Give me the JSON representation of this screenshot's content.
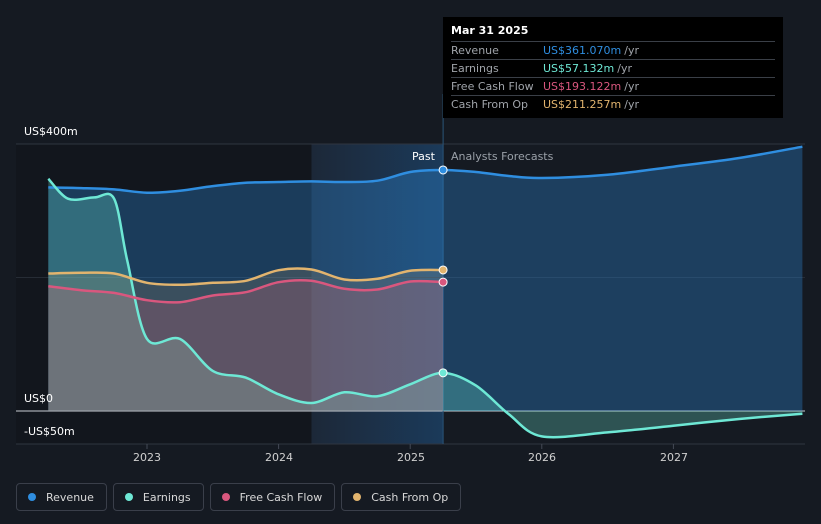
{
  "chart_data": {
    "type": "line",
    "title": "",
    "y_unit": "US$",
    "ylim": [
      -50,
      400
    ],
    "y_ticks": [
      {
        "value": 400,
        "label": "US$400m"
      },
      {
        "value": 0,
        "label": "US$0"
      },
      {
        "value": -50,
        "label": "-US$50m"
      }
    ],
    "x_ticks": [
      "2023",
      "2024",
      "2025",
      "2026",
      "2027"
    ],
    "periods": {
      "past_label": "Past",
      "forecast_label": "Analysts Forecasts"
    },
    "x_range": [
      2022.25,
      2027.98
    ],
    "highlight_range": [
      2024.25,
      2025.25
    ],
    "divider_x": 2025.25,
    "series": [
      {
        "name": "Revenue",
        "color": "#2f8ee0",
        "points": [
          [
            2022.25,
            335
          ],
          [
            2022.5,
            334
          ],
          [
            2022.75,
            332
          ],
          [
            2023.0,
            327
          ],
          [
            2023.25,
            330
          ],
          [
            2023.5,
            337
          ],
          [
            2023.75,
            342
          ],
          [
            2024.0,
            343
          ],
          [
            2024.25,
            344
          ],
          [
            2024.5,
            343
          ],
          [
            2024.75,
            345
          ],
          [
            2025.0,
            358
          ],
          [
            2025.25,
            361.07
          ],
          [
            2025.5,
            358
          ],
          [
            2025.75,
            352
          ],
          [
            2026.0,
            349
          ],
          [
            2026.5,
            354
          ],
          [
            2027.0,
            366
          ],
          [
            2027.5,
            379
          ],
          [
            2027.98,
            396
          ]
        ]
      },
      {
        "name": "Earnings",
        "color": "#6ee8d5",
        "points": [
          [
            2022.25,
            348
          ],
          [
            2022.4,
            318
          ],
          [
            2022.6,
            320
          ],
          [
            2022.75,
            318
          ],
          [
            2022.85,
            225
          ],
          [
            2023.0,
            108
          ],
          [
            2023.25,
            108
          ],
          [
            2023.5,
            60
          ],
          [
            2023.75,
            50
          ],
          [
            2024.0,
            25
          ],
          [
            2024.25,
            12
          ],
          [
            2024.5,
            28
          ],
          [
            2024.75,
            22
          ],
          [
            2025.0,
            40
          ],
          [
            2025.25,
            57.132
          ],
          [
            2025.5,
            38
          ],
          [
            2025.75,
            -5
          ],
          [
            2026.0,
            -38
          ],
          [
            2026.5,
            -32
          ],
          [
            2027.0,
            -22
          ],
          [
            2027.5,
            -12
          ],
          [
            2027.98,
            -4
          ]
        ]
      },
      {
        "name": "Free Cash Flow",
        "color": "#d9577e",
        "points": [
          [
            2022.25,
            187
          ],
          [
            2022.5,
            181
          ],
          [
            2022.75,
            177
          ],
          [
            2023.0,
            166
          ],
          [
            2023.25,
            163
          ],
          [
            2023.5,
            173
          ],
          [
            2023.75,
            178
          ],
          [
            2024.0,
            193
          ],
          [
            2024.25,
            195
          ],
          [
            2024.5,
            183
          ],
          [
            2024.75,
            182
          ],
          [
            2025.0,
            194
          ],
          [
            2025.25,
            193.122
          ]
        ]
      },
      {
        "name": "Cash From Op",
        "color": "#e2b46e",
        "points": [
          [
            2022.25,
            206
          ],
          [
            2022.5,
            207
          ],
          [
            2022.75,
            206
          ],
          [
            2023.0,
            192
          ],
          [
            2023.25,
            189
          ],
          [
            2023.5,
            192
          ],
          [
            2023.75,
            195
          ],
          [
            2024.0,
            211
          ],
          [
            2024.25,
            212
          ],
          [
            2024.5,
            197
          ],
          [
            2024.75,
            198
          ],
          [
            2025.0,
            210
          ],
          [
            2025.25,
            211.257
          ]
        ]
      }
    ]
  },
  "tooltip": {
    "date": "Mar 31 2025",
    "rows": [
      {
        "name": "Revenue",
        "value": "US$361.070m",
        "unit": "/yr",
        "color": "#2f8ee0"
      },
      {
        "name": "Earnings",
        "value": "US$57.132m",
        "unit": "/yr",
        "color": "#6ee8d5"
      },
      {
        "name": "Free Cash Flow",
        "value": "US$193.122m",
        "unit": "/yr",
        "color": "#d9577e"
      },
      {
        "name": "Cash From Op",
        "value": "US$211.257m",
        "unit": "/yr",
        "color": "#e2b46e"
      }
    ]
  },
  "legend": [
    {
      "label": "Revenue",
      "color": "#2f8ee0"
    },
    {
      "label": "Earnings",
      "color": "#6ee8d5"
    },
    {
      "label": "Free Cash Flow",
      "color": "#d9577e"
    },
    {
      "label": "Cash From Op",
      "color": "#e2b46e"
    }
  ]
}
